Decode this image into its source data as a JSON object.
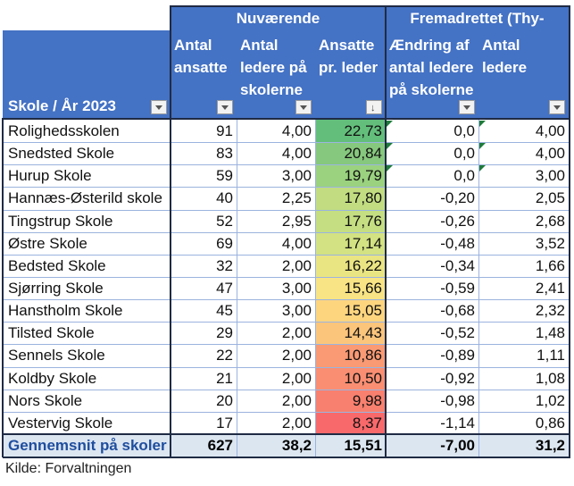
{
  "groups": {
    "current": "Nuværende",
    "future": "Fremadrettet (Thy-"
  },
  "headers": {
    "school": "Skole / År 2023",
    "employees": "Antal\nansatte",
    "leaders": "Antal\nledere på\nskolerne",
    "ratio": "Ansatte\npr. leder",
    "change": "Ændring af\nantal ledere\npå skolerne",
    "future_leaders": "Antal\nledere"
  },
  "rows": [
    {
      "school": "Rolighedsskolen",
      "employees": "91",
      "leaders": "4,00",
      "ratio": "22,73",
      "change": "0,0",
      "future": "4,00",
      "color": "#63BE7B",
      "flag": true
    },
    {
      "school": "Snedsted Skole",
      "employees": "83",
      "leaders": "4,00",
      "ratio": "20,84",
      "change": "0,0",
      "future": "4,00",
      "color": "#86C87D",
      "flag": true
    },
    {
      "school": "Hurup Skole",
      "employees": "59",
      "leaders": "3,00",
      "ratio": "19,79",
      "change": "0,0",
      "future": "3,00",
      "color": "#9AD27F",
      "flag": true
    },
    {
      "school": "Hannæs-Østerild skole",
      "employees": "40",
      "leaders": "2,25",
      "ratio": "17,80",
      "change": "-0,20",
      "future": "2,05",
      "color": "#C2DD81",
      "flag": false
    },
    {
      "school": "Tingstrup Skole",
      "employees": "52",
      "leaders": "2,95",
      "ratio": "17,76",
      "change": "-0,26",
      "future": "2,68",
      "color": "#C5DE82",
      "flag": false
    },
    {
      "school": "Østre Skole",
      "employees": "69",
      "leaders": "4,00",
      "ratio": "17,14",
      "change": "-0,48",
      "future": "3,52",
      "color": "#D3E282",
      "flag": false
    },
    {
      "school": "Bedsted Skole",
      "employees": "32",
      "leaders": "2,00",
      "ratio": "16,22",
      "change": "-0,34",
      "future": "1,66",
      "color": "#EAE583",
      "flag": false
    },
    {
      "school": "Sjørring Skole",
      "employees": "47",
      "leaders": "3,00",
      "ratio": "15,66",
      "change": "-0,59",
      "future": "2,41",
      "color": "#F8E484",
      "flag": false
    },
    {
      "school": "Hanstholm Skole",
      "employees": "45",
      "leaders": "3,00",
      "ratio": "15,05",
      "change": "-0,68",
      "future": "2,32",
      "color": "#FDD57F",
      "flag": false
    },
    {
      "school": "Tilsted Skole",
      "employees": "29",
      "leaders": "2,00",
      "ratio": "14,43",
      "change": "-0,52",
      "future": "1,48",
      "color": "#FCC57C",
      "flag": false
    },
    {
      "school": "Sennels Skole",
      "employees": "22",
      "leaders": "2,00",
      "ratio": "10,86",
      "change": "-0,89",
      "future": "1,11",
      "color": "#F99A74",
      "flag": false
    },
    {
      "school": "Koldby Skole",
      "employees": "21",
      "leaders": "2,00",
      "ratio": "10,50",
      "change": "-0,92",
      "future": "1,08",
      "color": "#F98E72",
      "flag": false
    },
    {
      "school": "Nors Skole",
      "employees": "20",
      "leaders": "2,00",
      "ratio": "9,98",
      "change": "-0,98",
      "future": "1,02",
      "color": "#F8806E",
      "flag": false
    },
    {
      "school": "Vestervig Skole",
      "employees": "17",
      "leaders": "2,00",
      "ratio": "8,37",
      "change": "-1,14",
      "future": "0,86",
      "color": "#F8696B",
      "flag": false
    }
  ],
  "total": {
    "label": "Gennemsnit på skoler",
    "employees": "627",
    "leaders": "38,2",
    "ratio": "15,51",
    "change": "-7,00",
    "future": "31,2"
  },
  "source": "Kilde: Forvaltningen",
  "colors": {
    "header_bg": "#4472C4",
    "total_bg": "#DCE6F1",
    "total_label": "#1F4E9E"
  }
}
